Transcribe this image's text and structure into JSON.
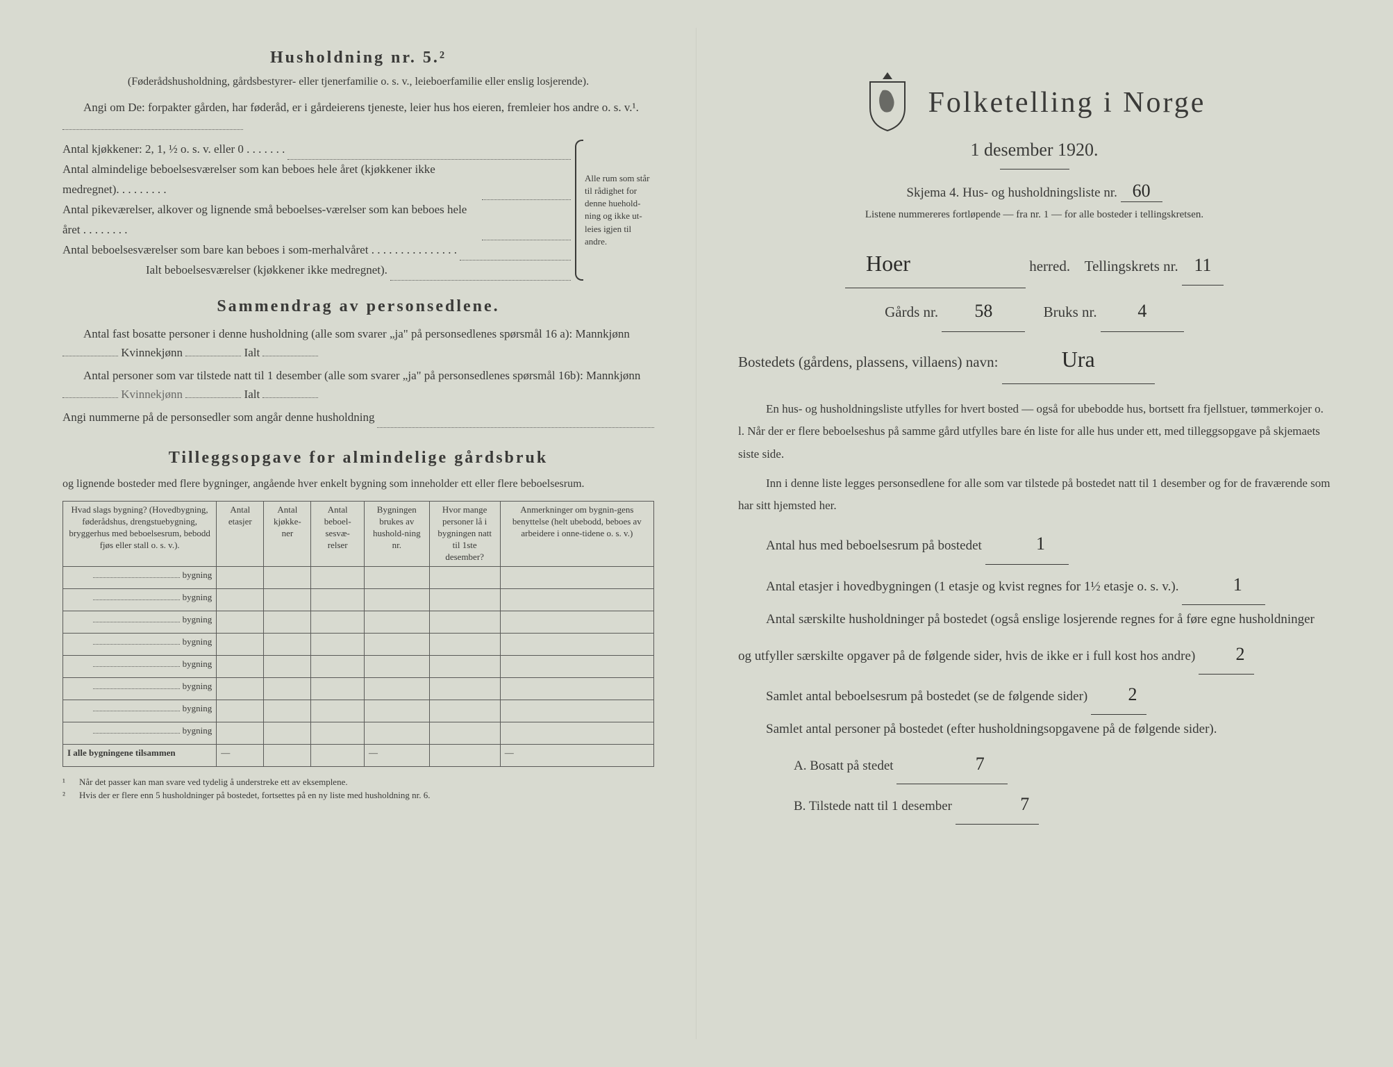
{
  "colors": {
    "paper": "#d8dad0",
    "ink": "#3a3a38",
    "faded": "#6a6a68"
  },
  "left": {
    "husholdning_title": "Husholdning nr. 5.²",
    "husholdning_sub": "(Føderådshusholdning, gårdsbestyrer- eller tjenerfamilie o. s. v., leieboerfamilie eller enslig losjerende).",
    "angi_para": "Angi om De: forpakter gården, har føderåd, er i gårdeierens tjeneste, leier hus hos eieren, fremleier hos andre o. s. v.¹.",
    "antal_kjokkener": "Antal kjøkkener: 2, 1, ½ o. s. v. eller 0 . . . . . . .",
    "antal_almindelige": "Antal almindelige beboelsesværelser som kan beboes hele året (kjøkkener ikke medregnet). . . . . . . . .",
    "antal_pike": "Antal pikeværelser, alkover og lignende små beboelses-værelser som kan beboes hele året . . . . . . . .",
    "antal_beboelse_sommer": "Antal beboelsesværelser som bare kan beboes i som-merhalvåret . . . . . . . . . . . . . . .",
    "ialt_beboelse": "Ialt beboelsesværelser (kjøkkener ikke medregnet).",
    "brace_text": "Alle rum som står til rådighet for denne huehold-ning og ikke ut-leies igjen til andre.",
    "sammendrag_title": "Sammendrag av personsedlene.",
    "antal_fast_bosatte": "Antal fast bosatte personer i denne husholdning (alle som svarer „ja\" på personsedlenes spørsmål 16 a): Mannkjønn",
    "kvinnekjonn": "Kvinnekjønn",
    "ialt": "Ialt",
    "antal_tilstede": "Antal personer som var tilstede natt til 1 desember (alle som svarer „ja\" på personsedlenes spørsmål 16b): Mannkjønn",
    "angi_nummerne": "Angi nummerne på de personsedler som angår denne husholdning",
    "tillegg_title": "Tilleggsopgave for almindelige gårdsbruk",
    "tillegg_sub": "og lignende bosteder med flere bygninger, angående hver enkelt bygning som inneholder ett eller flere beboelsesrum.",
    "table": {
      "headers": [
        "Hvad slags bygning?\n(Hovedbygning, føderådshus, drengstuebygning, bryggerhus med beboelsesrum, bebodd fjøs eller stall o. s. v.).",
        "Antal etasjer",
        "Antal kjøkke-ner",
        "Antal beboel-sesvæ-relser",
        "Bygningen brukes av hushold-ning nr.",
        "Hvor mange personer lå i bygningen natt til 1ste desember?",
        "Anmerkninger om bygnin-gens benyttelse (helt ubebodd, beboes av arbeidere i onne-tidene o. s. v.)"
      ],
      "row_suffix": "bygning",
      "row_count": 8,
      "total_label": "I alle bygningene tilsammen",
      "col_widths": [
        "26%",
        "8%",
        "8%",
        "9%",
        "11%",
        "12%",
        "26%"
      ]
    },
    "footnote1": "Når det passer kan man svare ved tydelig å understreke ett av eksemplene.",
    "footnote2": "Hvis der er flere enn 5 husholdninger på bostedet, fortsettes på en ny liste med husholdning nr. 6."
  },
  "right": {
    "main_title": "Folketelling i Norge",
    "date": "1 desember 1920.",
    "skjema_label": "Skjema 4.  Hus- og husholdningsliste nr.",
    "list_nr": "60",
    "listene_sub": "Listene nummereres fortløpende — fra nr. 1 — for alle bosteder i tellingskretsen.",
    "herred_value": "Hoer",
    "herred_label": "herred.",
    "tellingskrets_label": "Tellingskrets nr.",
    "tellingskrets_value": "11",
    "gards_label": "Gårds nr.",
    "gards_value": "58",
    "bruks_label": "Bruks nr.",
    "bruks_value": "4",
    "bosted_label": "Bostedets (gårdens, plassens, villaens) navn:",
    "bosted_value": "Ura",
    "body1": "En hus- og husholdningsliste utfylles for hvert bosted — også for ubebodde hus, bortsett fra fjellstuer, tømmerkojer o. l. Når der er flere beboelseshus på samme gård utfylles bare én liste for alle hus under ett, med tilleggsopgave på skjemaets siste side.",
    "body2": "Inn i denne liste legges personsedlene for alle som var tilstede på bostedet natt til 1 desember og for de fraværende som har sitt hjemsted her.",
    "antal_hus_label": "Antal hus med beboelsesrum på bostedet",
    "antal_hus_value": "1",
    "antal_etasjer_label": "Antal etasjer i hovedbygningen (1 etasje og kvist regnes for 1½ etasje o. s. v.).",
    "antal_etasjer_value": "1",
    "antal_saerskilte_label": "Antal særskilte husholdninger på bostedet (også enslige losjerende regnes for å føre egne husholdninger og utfyller særskilte opgaver på de følgende sider, hvis de ikke er i full kost hos andre)",
    "antal_saerskilte_value": "2",
    "samlet_beboelse_label": "Samlet antal beboelsesrum på bostedet (se de følgende sider)",
    "samlet_beboelse_value": "2",
    "samlet_personer_label": "Samlet antal personer på bostedet (efter husholdningsopgavene på de følgende sider).",
    "bosatt_label": "A.  Bosatt på stedet",
    "bosatt_value": "7",
    "tilstede_label": "B.  Tilstede natt til 1 desember",
    "tilstede_value": "7"
  }
}
